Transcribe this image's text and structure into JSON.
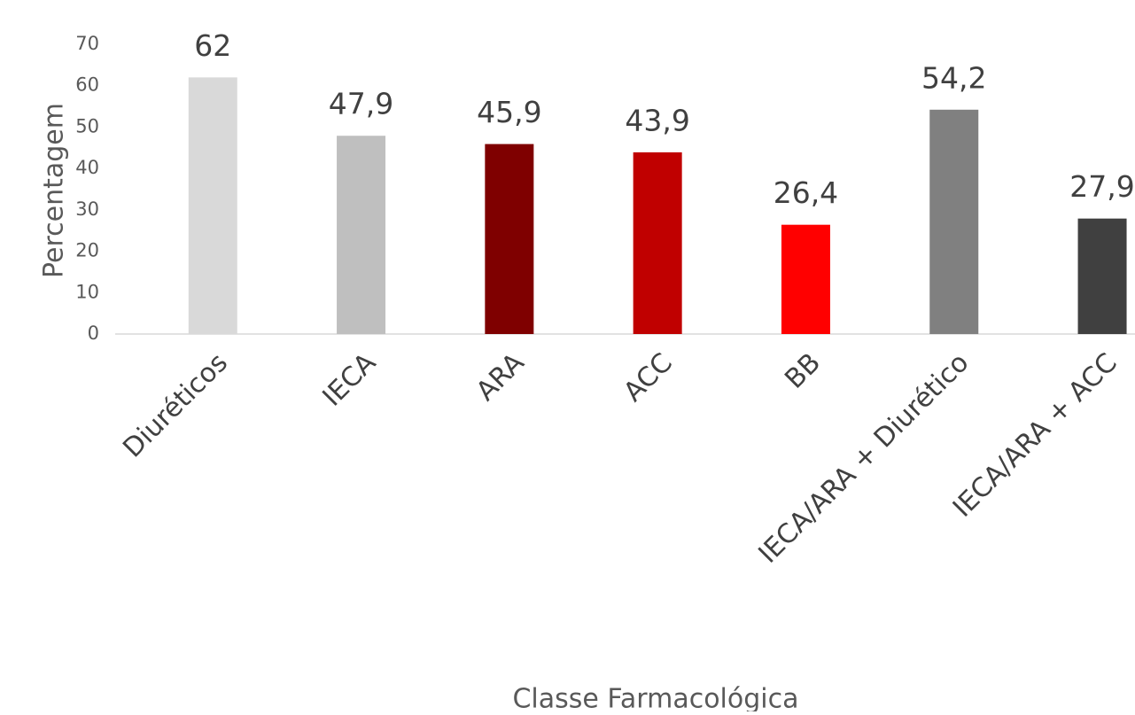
{
  "chart_data": {
    "type": "bar",
    "categories": [
      "Diuréticos",
      "IECA",
      "ARA",
      "ACC",
      "BB",
      "IECA/ARA + Diurético",
      "IECA/ARA + ACC"
    ],
    "values": [
      62,
      47.9,
      45.9,
      43.9,
      26.4,
      54.2,
      27.9
    ],
    "value_labels": [
      "62",
      "47,9",
      "45,9",
      "43,9",
      "26,4",
      "54,2",
      "27,9"
    ],
    "colors": [
      "#d9d9d9",
      "#bfbfbf",
      "#7f0000",
      "#c00000",
      "#ff0000",
      "#808080",
      "#404040"
    ],
    "ylim": [
      0,
      70
    ],
    "yticks": [
      0,
      10,
      20,
      30,
      40,
      50,
      60,
      70
    ],
    "ylabel": "Percentagem",
    "xlabel": "Classe Farmacológica",
    "grid": false
  }
}
